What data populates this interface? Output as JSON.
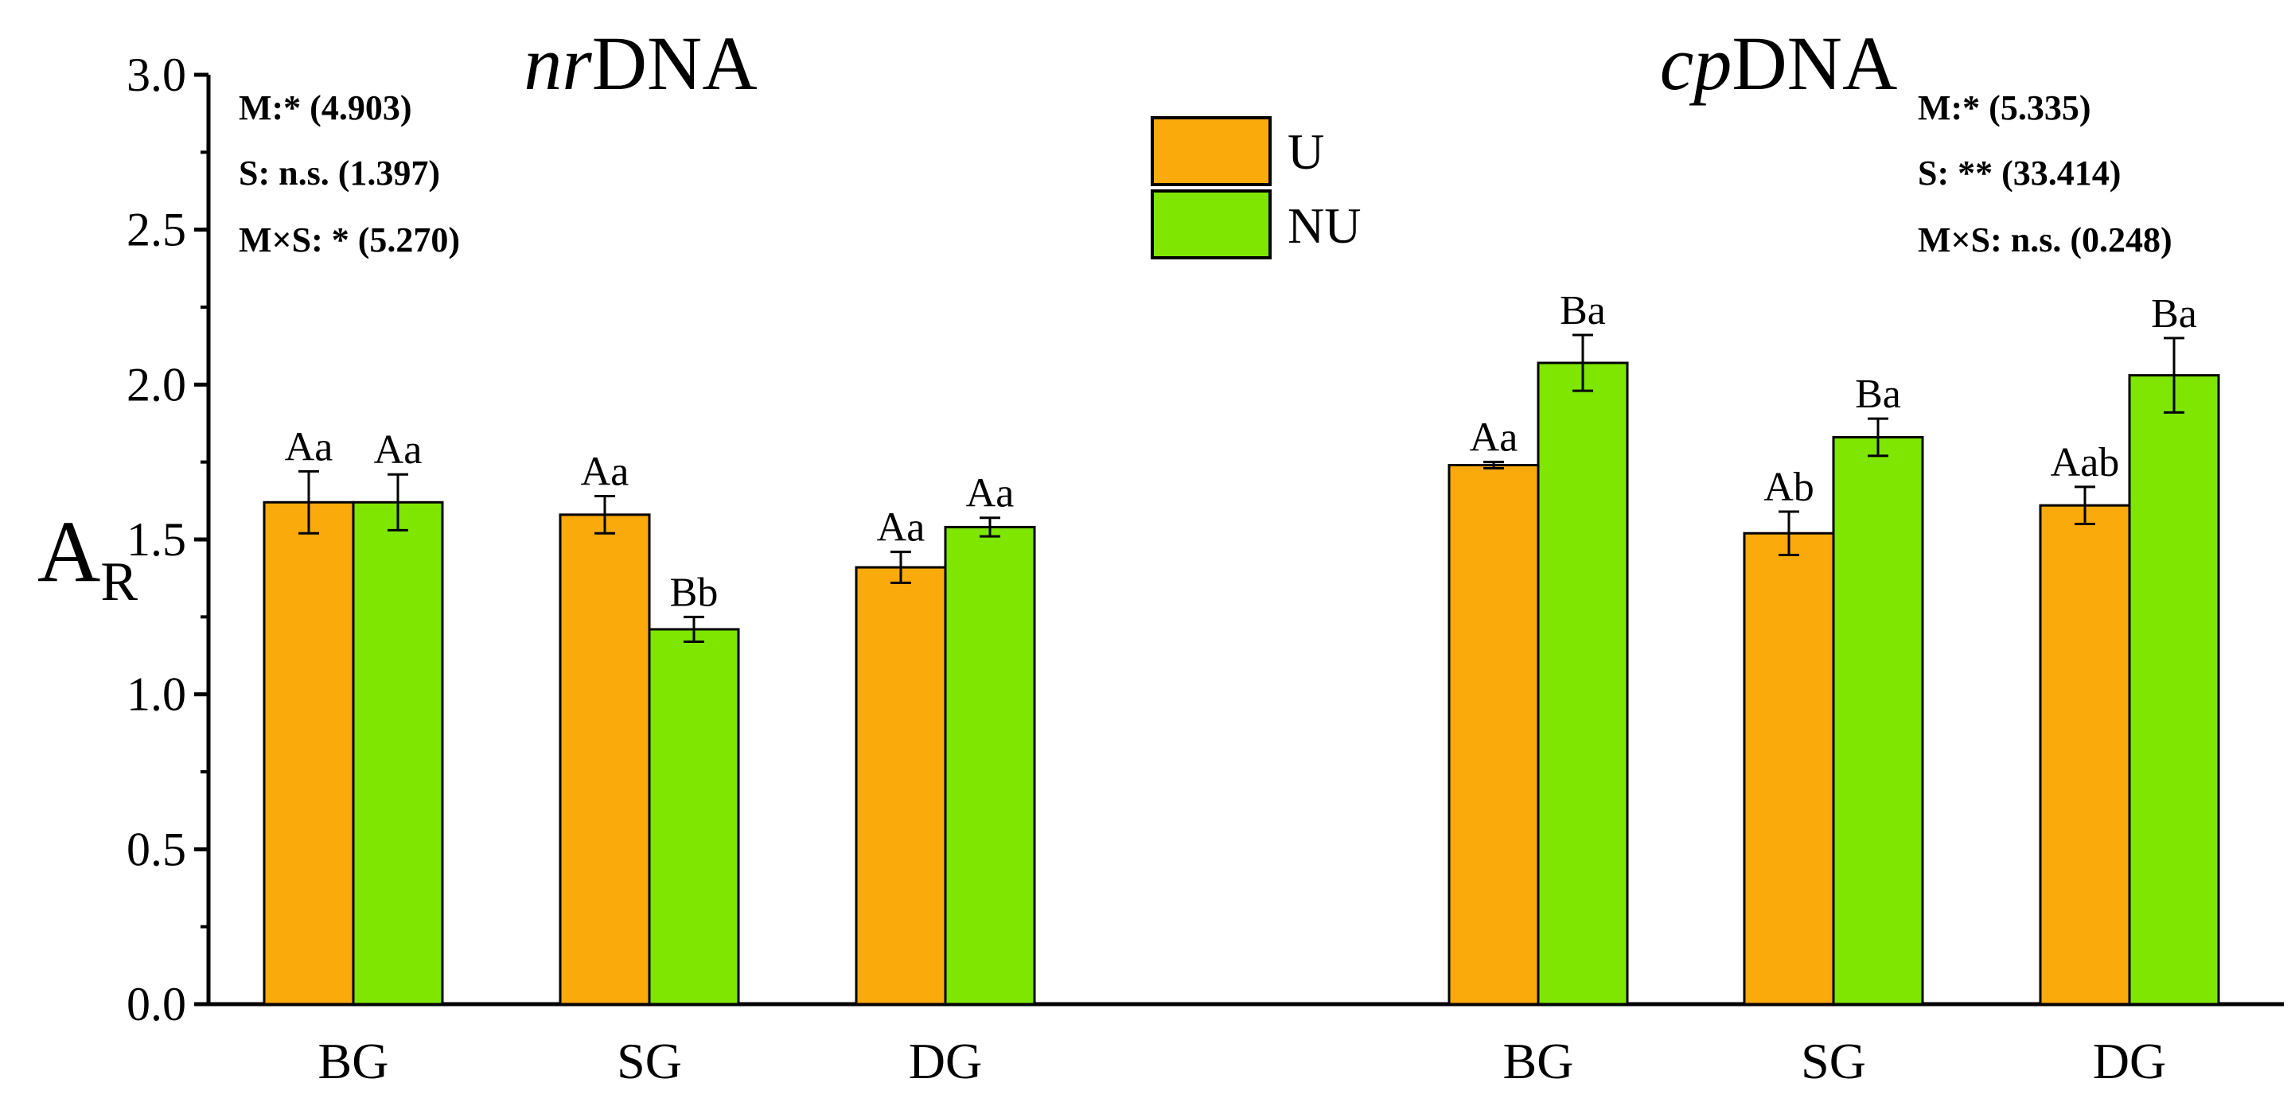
{
  "chart_data": {
    "type": "bar",
    "ylabel": "A",
    "ylabel_subscript": "R",
    "ylim": [
      0,
      3.0
    ],
    "yticks": [
      "0.0",
      "0.5",
      "1.0",
      "1.5",
      "2.0",
      "2.5",
      "3.0"
    ],
    "colors": {
      "U": "#FAAA0A",
      "NU": "#7EE600"
    },
    "legend": {
      "placement": "top-center",
      "entries": [
        "U",
        "NU"
      ]
    },
    "panels": [
      {
        "title_italic": "nr",
        "title_rest": "DNA",
        "categories": [
          "BG",
          "SG",
          "DG"
        ],
        "series": [
          {
            "name": "U",
            "values": [
              1.62,
              1.58,
              1.41
            ],
            "errors": [
              0.1,
              0.06,
              0.05
            ],
            "labels": [
              "Aa",
              "Aa",
              "Aa"
            ]
          },
          {
            "name": "NU",
            "values": [
              1.62,
              1.21,
              1.54
            ],
            "errors": [
              0.09,
              0.04,
              0.03
            ],
            "labels": [
              "Aa",
              "Bb",
              "Aa"
            ]
          }
        ],
        "stats": [
          "M:* (4.903)",
          "S: n.s. (1.397)",
          "M×S: * (5.270)"
        ]
      },
      {
        "title_italic": "cp",
        "title_rest": "DNA",
        "categories": [
          "BG",
          "SG",
          "DG"
        ],
        "series": [
          {
            "name": "U",
            "values": [
              1.74,
              1.52,
              1.61
            ],
            "errors": [
              0.01,
              0.07,
              0.06
            ],
            "labels": [
              "Aa",
              "Ab",
              "Aab"
            ]
          },
          {
            "name": "NU",
            "values": [
              2.07,
              1.83,
              2.03
            ],
            "errors": [
              0.09,
              0.06,
              0.12
            ],
            "labels": [
              "Ba",
              "Ba",
              "Ba"
            ]
          }
        ],
        "stats": [
          "M:* (5.335)",
          "S: ** (33.414)",
          "M×S: n.s. (0.248)"
        ]
      }
    ]
  }
}
